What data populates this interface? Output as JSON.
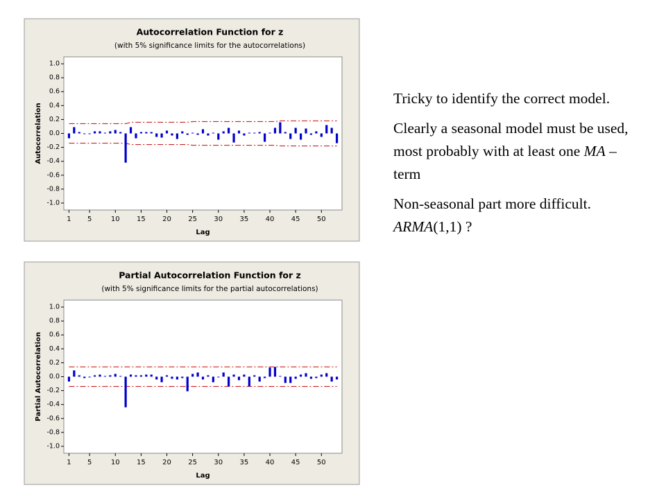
{
  "chart_data": [
    {
      "type": "bar",
      "title": "Autocorrelation Function for z",
      "subtitle": "(with 5% significance limits for the autocorrelations)",
      "x_label": "Lag",
      "y_label": "Autocorrelation",
      "x": [
        1,
        2,
        3,
        4,
        5,
        6,
        7,
        8,
        9,
        10,
        11,
        12,
        13,
        14,
        15,
        16,
        17,
        18,
        19,
        20,
        21,
        22,
        23,
        24,
        25,
        26,
        27,
        28,
        29,
        30,
        31,
        32,
        33,
        34,
        35,
        36,
        37,
        38,
        39,
        40,
        41,
        42,
        43,
        44,
        45,
        46,
        47,
        48,
        49,
        50,
        51,
        52,
        53
      ],
      "values": [
        -0.07,
        0.09,
        0.02,
        -0.01,
        -0.01,
        0.03,
        0.03,
        0.01,
        0.03,
        0.05,
        0.02,
        -0.42,
        0.09,
        -0.07,
        0.02,
        0.02,
        0.02,
        -0.05,
        -0.06,
        0.04,
        -0.03,
        -0.08,
        0.03,
        -0.02,
        0.01,
        -0.02,
        0.06,
        -0.03,
        0.01,
        -0.09,
        0.03,
        0.08,
        -0.13,
        0.04,
        -0.03,
        0.01,
        0.01,
        0.02,
        -0.12,
        0.01,
        0.08,
        0.16,
        0.02,
        -0.08,
        0.08,
        -0.09,
        0.07,
        -0.02,
        0.03,
        -0.05,
        0.12,
        0.08,
        -0.14
      ],
      "color": "#0000cc",
      "upper_limits": [
        0.14,
        0.14,
        0.14,
        0.14,
        0.14,
        0.14,
        0.14,
        0.14,
        0.14,
        0.14,
        0.14,
        0.14,
        0.16,
        0.16,
        0.16,
        0.16,
        0.16,
        0.16,
        0.16,
        0.16,
        0.16,
        0.16,
        0.16,
        0.16,
        0.17,
        0.17,
        0.17,
        0.17,
        0.17,
        0.17,
        0.17,
        0.17,
        0.17,
        0.17,
        0.17,
        0.17,
        0.17,
        0.17,
        0.17,
        0.17,
        0.17,
        0.18,
        0.18,
        0.18,
        0.18,
        0.18,
        0.18,
        0.18,
        0.18,
        0.18,
        0.18,
        0.18,
        0.18
      ],
      "lower_limits": [
        -0.14,
        -0.14,
        -0.14,
        -0.14,
        -0.14,
        -0.14,
        -0.14,
        -0.14,
        -0.14,
        -0.14,
        -0.14,
        -0.14,
        -0.16,
        -0.16,
        -0.16,
        -0.16,
        -0.16,
        -0.16,
        -0.16,
        -0.16,
        -0.16,
        -0.16,
        -0.16,
        -0.16,
        -0.17,
        -0.17,
        -0.17,
        -0.17,
        -0.17,
        -0.17,
        -0.17,
        -0.17,
        -0.17,
        -0.17,
        -0.17,
        -0.17,
        -0.17,
        -0.17,
        -0.17,
        -0.17,
        -0.17,
        -0.18,
        -0.18,
        -0.18,
        -0.18,
        -0.18,
        -0.18,
        -0.18,
        -0.18,
        -0.18,
        -0.18,
        -0.18,
        -0.18
      ],
      "limit_color": "#cc2222",
      "xlim": [
        0,
        54
      ],
      "xticks": [
        1,
        5,
        10,
        15,
        20,
        25,
        30,
        35,
        40,
        45,
        50
      ],
      "ylim": [
        -1.1,
        1.1
      ],
      "yticks": [
        {
          "value": 1,
          "label": "1.0"
        },
        0.8,
        0.6,
        0.4,
        0.2,
        {
          "value": 0,
          "label": "0.0"
        },
        -0.2,
        -0.4,
        -0.6,
        -0.8,
        {
          "value": -1,
          "label": "-1.0"
        }
      ]
    },
    {
      "type": "bar",
      "title": "Partial Autocorrelation Function for z",
      "subtitle": "(with 5% significance limits for the partial autocorrelations)",
      "x_label": "Lag",
      "y_label": "Partial Autocorrelation",
      "x": [
        1,
        2,
        3,
        4,
        5,
        6,
        7,
        8,
        9,
        10,
        11,
        12,
        13,
        14,
        15,
        16,
        17,
        18,
        19,
        20,
        21,
        22,
        23,
        24,
        25,
        26,
        27,
        28,
        29,
        30,
        31,
        32,
        33,
        34,
        35,
        36,
        37,
        38,
        39,
        40,
        41,
        42,
        43,
        44,
        45,
        46,
        47,
        48,
        49,
        50,
        51,
        52,
        53
      ],
      "values": [
        -0.07,
        0.09,
        0.02,
        -0.02,
        -0.01,
        0.02,
        0.03,
        0.01,
        0.02,
        0.04,
        0.01,
        -0.44,
        0.03,
        0.02,
        0.02,
        0.03,
        0.03,
        -0.04,
        -0.08,
        0.02,
        -0.03,
        -0.04,
        -0.02,
        -0.21,
        0.04,
        0.06,
        -0.04,
        0.02,
        -0.08,
        -0.01,
        0.06,
        -0.14,
        0.03,
        -0.05,
        0.03,
        -0.14,
        0.02,
        -0.07,
        -0.02,
        0.13,
        0.14,
        0.01,
        -0.09,
        -0.09,
        -0.03,
        0.03,
        0.05,
        -0.03,
        -0.02,
        0.03,
        0.05,
        -0.07,
        -0.04
      ],
      "color": "#0000cc",
      "upper_limits": [
        0.14,
        0.14,
        0.14,
        0.14,
        0.14,
        0.14,
        0.14,
        0.14,
        0.14,
        0.14,
        0.14,
        0.14,
        0.14,
        0.14,
        0.14,
        0.14,
        0.14,
        0.14,
        0.14,
        0.14,
        0.14,
        0.14,
        0.14,
        0.14,
        0.14,
        0.14,
        0.14,
        0.14,
        0.14,
        0.14,
        0.14,
        0.14,
        0.14,
        0.14,
        0.14,
        0.14,
        0.14,
        0.14,
        0.14,
        0.14,
        0.14,
        0.14,
        0.14,
        0.14,
        0.14,
        0.14,
        0.14,
        0.14,
        0.14,
        0.14,
        0.14,
        0.14,
        0.14
      ],
      "lower_limits": [
        -0.14,
        -0.14,
        -0.14,
        -0.14,
        -0.14,
        -0.14,
        -0.14,
        -0.14,
        -0.14,
        -0.14,
        -0.14,
        -0.14,
        -0.14,
        -0.14,
        -0.14,
        -0.14,
        -0.14,
        -0.14,
        -0.14,
        -0.14,
        -0.14,
        -0.14,
        -0.14,
        -0.14,
        -0.14,
        -0.14,
        -0.14,
        -0.14,
        -0.14,
        -0.14,
        -0.14,
        -0.14,
        -0.14,
        -0.14,
        -0.14,
        -0.14,
        -0.14,
        -0.14,
        -0.14,
        -0.14,
        -0.14,
        -0.14,
        -0.14,
        -0.14,
        -0.14,
        -0.14,
        -0.14,
        -0.14,
        -0.14,
        -0.14,
        -0.14,
        -0.14,
        -0.14
      ],
      "limit_color": "#cc2222",
      "xlim": [
        0,
        54
      ],
      "xticks": [
        1,
        5,
        10,
        15,
        20,
        25,
        30,
        35,
        40,
        45,
        50
      ],
      "ylim": [
        -1.1,
        1.1
      ],
      "yticks": [
        {
          "value": 1,
          "label": "1.0"
        },
        0.8,
        0.6,
        0.4,
        0.2,
        {
          "value": 0,
          "label": "0.0"
        },
        -0.2,
        -0.4,
        -0.6,
        -0.8,
        {
          "value": -1,
          "label": "-1.0"
        }
      ]
    }
  ],
  "notes": {
    "paragraphs": [
      [
        {
          "text": "Tricky to identify the correct model."
        }
      ],
      [
        {
          "text": "Clearly a seasonal model must be used, most probably with at least one "
        },
        {
          "text": "MA",
          "italic": true
        },
        {
          "text": " –term"
        }
      ],
      [
        {
          "text": "Non-seasonal part more difficult. "
        },
        {
          "text": "ARMA",
          "italic": true
        },
        {
          "text": "(1,1) ?"
        }
      ]
    ]
  }
}
